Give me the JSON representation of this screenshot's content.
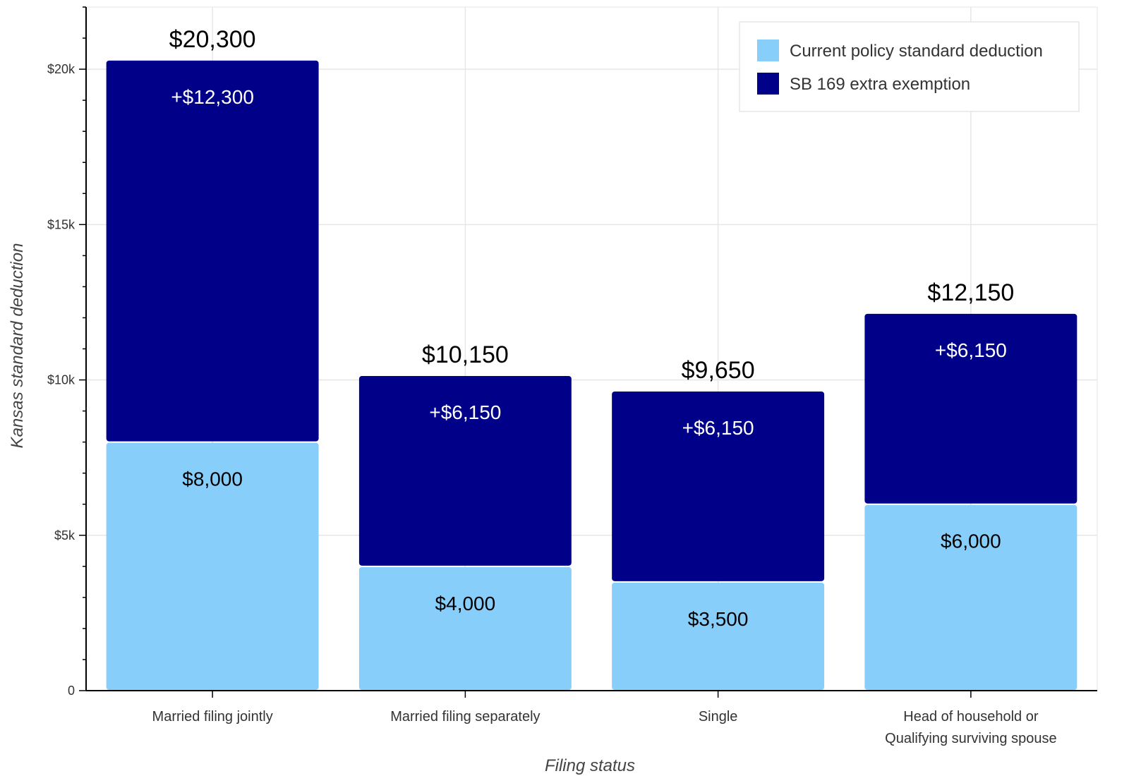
{
  "chart_data": {
    "type": "bar",
    "stacked": true,
    "categories": [
      [
        "Married filing jointly"
      ],
      [
        "Married filing separately"
      ],
      [
        "Single"
      ],
      [
        "Head of household or",
        "Qualifying surviving spouse"
      ]
    ],
    "series": [
      {
        "name": "Current policy standard deduction",
        "color": "#87CEFA",
        "values": [
          8000,
          4000,
          3500,
          6000
        ],
        "labels": [
          "$8,000",
          "$4,000",
          "$3,500",
          "$6,000"
        ]
      },
      {
        "name": "SB 169 extra exemption",
        "color": "#000088",
        "values": [
          12300,
          6150,
          6150,
          6150
        ],
        "labels": [
          "+$12,300",
          "+$6,150",
          "+$6,150",
          "+$6,150"
        ]
      }
    ],
    "totals": [
      "$20,300",
      "$10,150",
      "$9,650",
      "$12,150"
    ],
    "xlabel": "Filing status",
    "ylabel": "Kansas standard deduction",
    "ylim": [
      0,
      22000
    ],
    "yticks": [
      0,
      5000,
      10000,
      15000,
      20000
    ],
    "ytick_labels": [
      "0",
      "$5k",
      "$10k",
      "$15k",
      "$20k"
    ],
    "grid": true,
    "legend_position": "top-right"
  }
}
